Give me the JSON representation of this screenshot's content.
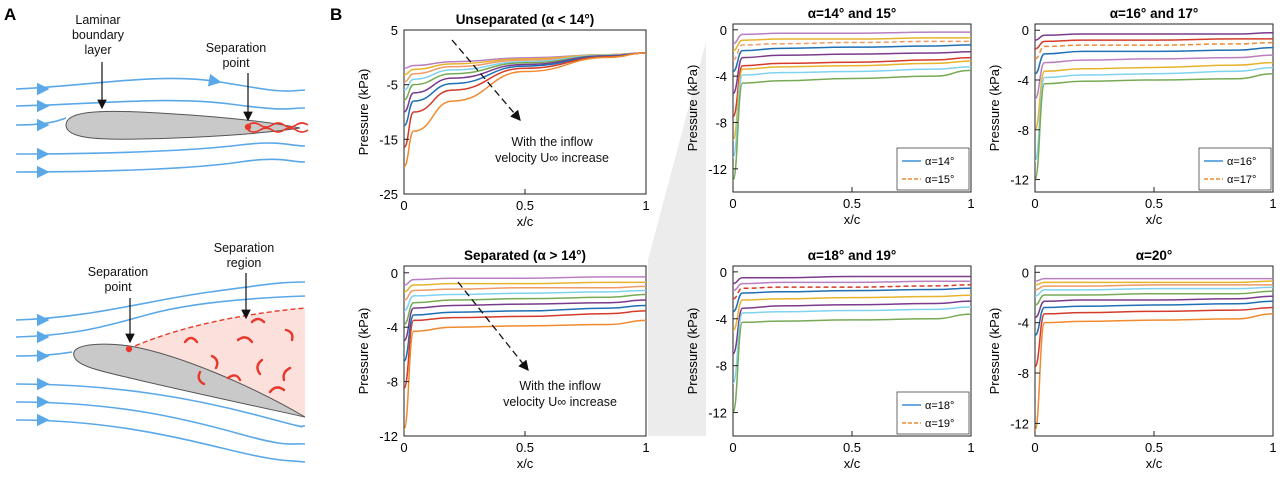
{
  "figure": {
    "label_a": "A",
    "label_b": "B",
    "a_annotations": {
      "laminar": [
        "Laminar",
        "boundary",
        "layer"
      ],
      "separation_point_top": [
        "Separation",
        "point"
      ],
      "separation_point_bottom": [
        "Separation",
        "point"
      ],
      "separation_region": [
        "Separation",
        "region"
      ]
    },
    "arrow_note": [
      "With the inflow",
      "velocity U∞ increase"
    ]
  },
  "colors": {
    "streamline": "#5aa8e8",
    "airfoil_fill": "#c9c9c9",
    "separation": "#e8382c",
    "series": [
      "#b97fc0",
      "#e6b32c",
      "#ee9b66",
      "#7fd3ef",
      "#77aa55",
      "#7b3b8c",
      "#1f6fb4",
      "#d43b2a",
      "#f08a2e"
    ]
  },
  "chart_data": [
    {
      "id": "unseparated",
      "type": "line",
      "title": "Unseparated (α < 14°)",
      "xlabel": "x/c",
      "ylabel": "Pressure (kPa)",
      "xlim": [
        0,
        1
      ],
      "ylim": [
        -25,
        5
      ],
      "xticks": [
        "0",
        "0.5",
        "1"
      ],
      "yticks": [
        "5",
        "-5",
        "-15",
        "-25"
      ],
      "series": [
        {
          "name": "curve-1",
          "values": [
            -2.0,
            -1.5,
            -0.8,
            -0.1,
            0.5,
            0.8
          ]
        },
        {
          "name": "curve-2",
          "values": [
            -3.2,
            -2.2,
            -1.2,
            -0.3,
            0.5,
            0.8
          ]
        },
        {
          "name": "curve-3",
          "values": [
            -4.5,
            -3.0,
            -1.7,
            -0.5,
            0.4,
            0.8
          ]
        },
        {
          "name": "curve-4",
          "values": [
            -6.0,
            -4.0,
            -2.3,
            -0.8,
            0.4,
            0.8
          ]
        },
        {
          "name": "curve-5",
          "values": [
            -7.8,
            -5.0,
            -3.0,
            -1.0,
            0.3,
            0.8
          ]
        },
        {
          "name": "curve-6",
          "values": [
            -10.0,
            -6.5,
            -3.8,
            -1.3,
            0.3,
            0.8
          ]
        },
        {
          "name": "curve-7",
          "values": [
            -12.5,
            -8.0,
            -4.8,
            -1.6,
            0.2,
            0.8
          ]
        },
        {
          "name": "curve-8",
          "values": [
            -16.5,
            -10.0,
            -6.0,
            -2.0,
            0.1,
            0.8
          ]
        },
        {
          "name": "curve-9",
          "values": [
            -20.0,
            -13.5,
            -8.0,
            -2.6,
            0.0,
            0.8
          ]
        }
      ],
      "series_colors": [
        "#b97fc0",
        "#e6b32c",
        "#ee9b66",
        "#7fd3ef",
        "#77aa55",
        "#7b3b8c",
        "#1f6fb4",
        "#d43b2a",
        "#f08a2e"
      ]
    },
    {
      "id": "separated",
      "type": "line",
      "title": "Separated (α > 14°)",
      "xlabel": "x/c",
      "ylabel": "Pressure (kPa)",
      "xlim": [
        0,
        1
      ],
      "ylim": [
        -12,
        0.5
      ],
      "xticks": [
        "0",
        "0.5",
        "1"
      ],
      "yticks": [
        "0",
        "-4",
        "-8",
        "-12"
      ],
      "series": [
        {
          "name": "curve-1",
          "values": [
            -0.9,
            -0.5,
            -0.4,
            -0.4,
            -0.3,
            -0.3
          ]
        },
        {
          "name": "curve-2",
          "values": [
            -1.4,
            -0.9,
            -0.8,
            -0.8,
            -0.7,
            -0.7
          ]
        },
        {
          "name": "curve-3",
          "values": [
            -2.0,
            -1.3,
            -1.2,
            -1.1,
            -1.1,
            -1.0
          ]
        },
        {
          "name": "curve-4",
          "values": [
            -2.8,
            -1.7,
            -1.6,
            -1.5,
            -1.4,
            -1.3
          ]
        },
        {
          "name": "curve-5",
          "values": [
            -3.8,
            -2.2,
            -2.0,
            -1.9,
            -1.8,
            -1.6
          ]
        },
        {
          "name": "curve-6",
          "values": [
            -5.0,
            -2.6,
            -2.4,
            -2.3,
            -2.2,
            -2.0
          ]
        },
        {
          "name": "curve-7",
          "values": [
            -6.5,
            -3.1,
            -2.9,
            -2.8,
            -2.6,
            -2.4
          ]
        },
        {
          "name": "curve-8",
          "values": [
            -8.5,
            -3.5,
            -3.3,
            -3.2,
            -3.0,
            -2.8
          ]
        },
        {
          "name": "curve-9",
          "values": [
            -11.5,
            -4.3,
            -4.0,
            -3.9,
            -3.8,
            -3.5
          ]
        }
      ],
      "series_colors": [
        "#b97fc0",
        "#e6b32c",
        "#ee9b66",
        "#7fd3ef",
        "#77aa55",
        "#7b3b8c",
        "#1f6fb4",
        "#d43b2a",
        "#f08a2e"
      ]
    },
    {
      "id": "alpha-14-15",
      "type": "line",
      "title": "α=14° and 15°",
      "xlabel": "x/c",
      "ylabel": "Pressure (kPa)",
      "xlim": [
        0,
        1
      ],
      "ylim": [
        -14,
        0.5
      ],
      "xticks": [
        "0",
        "0.5",
        "1"
      ],
      "yticks": [
        "0",
        "-4",
        "-8",
        "-12"
      ],
      "legend": [
        "α=14°",
        "α=15°"
      ],
      "series": [
        {
          "name": "curve-1",
          "values": [
            -1.2,
            -0.4,
            -0.3,
            -0.3,
            -0.2,
            -0.2
          ]
        },
        {
          "name": "curve-2",
          "values": [
            -1.8,
            -0.9,
            -0.8,
            -0.8,
            -0.7,
            -0.7
          ]
        },
        {
          "name": "curve-3",
          "values": [
            -2.6,
            -1.3,
            -1.2,
            -1.1,
            -1.0,
            -1.0
          ]
        },
        {
          "name": "curve-4",
          "values": [
            -3.6,
            -1.8,
            -1.6,
            -1.5,
            -1.4,
            -1.3
          ]
        },
        {
          "name": "curve-5",
          "values": [
            -5.5,
            -2.4,
            -2.2,
            -2.1,
            -2.0,
            -1.9
          ]
        },
        {
          "name": "curve-6",
          "values": [
            -7.5,
            -3.1,
            -2.9,
            -2.8,
            -2.6,
            -2.4
          ]
        },
        {
          "name": "curve-7",
          "values": [
            -9.5,
            -3.4,
            -3.2,
            -3.1,
            -2.9,
            -2.7
          ]
        },
        {
          "name": "curve-8",
          "values": [
            -11.0,
            -3.9,
            -3.7,
            -3.6,
            -3.4,
            -3.2
          ]
        },
        {
          "name": "curve-9",
          "values": [
            -13.0,
            -4.6,
            -4.4,
            -4.2,
            -4.0,
            -3.5
          ]
        }
      ],
      "series_colors": [
        "#b97fc0",
        "#e6b32c",
        "#ee9b66",
        "#1f6fb4",
        "#7b3b8c",
        "#d43b2a",
        "#e6b32c",
        "#7fd3ef",
        "#77aa55"
      ]
    },
    {
      "id": "alpha-16-17",
      "type": "line",
      "title": "α=16° and 17°",
      "xlabel": "x/c",
      "ylabel": "Pressure (kPa)",
      "xlim": [
        0,
        1
      ],
      "ylim": [
        -13,
        0.5
      ],
      "xticks": [
        "0",
        "0.5",
        "1"
      ],
      "yticks": [
        "0",
        "-4",
        "-8",
        "-12"
      ],
      "legend": [
        "α=16°",
        "α=17°"
      ],
      "series": [
        {
          "name": "curve-1",
          "values": [
            -0.8,
            -0.4,
            -0.3,
            -0.3,
            -0.3,
            -0.2
          ]
        },
        {
          "name": "curve-2",
          "values": [
            -1.5,
            -0.9,
            -0.8,
            -0.8,
            -0.7,
            -0.7
          ]
        },
        {
          "name": "curve-3",
          "values": [
            -2.3,
            -1.3,
            -1.2,
            -1.2,
            -1.1,
            -1.0
          ]
        },
        {
          "name": "curve-4",
          "values": [
            -3.5,
            -1.9,
            -1.7,
            -1.7,
            -1.6,
            -1.4
          ]
        },
        {
          "name": "curve-5",
          "values": [
            -5.5,
            -2.6,
            -2.4,
            -2.3,
            -2.2,
            -2.0
          ]
        },
        {
          "name": "curve-6",
          "values": [
            -8.0,
            -3.3,
            -3.1,
            -3.0,
            -2.8,
            -2.6
          ]
        },
        {
          "name": "curve-7",
          "values": [
            -10.5,
            -3.8,
            -3.6,
            -3.5,
            -3.3,
            -3.0
          ]
        },
        {
          "name": "curve-8",
          "values": [
            -12.0,
            -4.3,
            -4.1,
            -4.0,
            -3.9,
            -3.5
          ]
        }
      ],
      "series_colors": [
        "#7b3b8c",
        "#d43b2a",
        "#f08a2e",
        "#1f6fb4",
        "#b97fc0",
        "#e6b32c",
        "#7fd3ef",
        "#77aa55"
      ]
    },
    {
      "id": "alpha-18-19",
      "type": "line",
      "title": "α=18° and 19°",
      "xlabel": "x/c",
      "ylabel": "Pressure (kPa)",
      "xlim": [
        0,
        1
      ],
      "ylim": [
        -14,
        0.5
      ],
      "xticks": [
        "0",
        "0.5",
        "1"
      ],
      "yticks": [
        "0",
        "-4",
        "-8",
        "-12"
      ],
      "legend": [
        "α=18°",
        "α=19°"
      ],
      "series": [
        {
          "name": "curve-1",
          "values": [
            -1.0,
            -0.5,
            -0.5,
            -0.4,
            -0.4,
            -0.4
          ]
        },
        {
          "name": "curve-2",
          "values": [
            -1.6,
            -1.0,
            -0.9,
            -0.9,
            -0.8,
            -0.8
          ]
        },
        {
          "name": "curve-3",
          "values": [
            -2.3,
            -1.4,
            -1.3,
            -1.3,
            -1.2,
            -1.1
          ]
        },
        {
          "name": "curve-4",
          "values": [
            -3.4,
            -1.8,
            -1.7,
            -1.6,
            -1.5,
            -1.4
          ]
        },
        {
          "name": "curve-5",
          "values": [
            -5.0,
            -2.4,
            -2.3,
            -2.2,
            -2.1,
            -2.0
          ]
        },
        {
          "name": "curve-6",
          "values": [
            -7.0,
            -3.1,
            -2.9,
            -2.8,
            -2.7,
            -2.5
          ]
        },
        {
          "name": "curve-7",
          "values": [
            -9.5,
            -3.5,
            -3.4,
            -3.3,
            -3.2,
            -3.0
          ]
        },
        {
          "name": "curve-8",
          "values": [
            -12.0,
            -4.3,
            -4.2,
            -4.1,
            -4.0,
            -3.6
          ]
        }
      ],
      "series_colors": [
        "#7b3b8c",
        "#b97fc0",
        "#d43b2a",
        "#1f6fb4",
        "#e6b32c",
        "#7b3b8c",
        "#7fd3ef",
        "#77aa55"
      ]
    },
    {
      "id": "alpha-20",
      "type": "line",
      "title": "α=20°",
      "xlabel": "x/c",
      "ylabel": "Pressure (kPa)",
      "xlim": [
        0,
        1
      ],
      "ylim": [
        -13,
        0.5
      ],
      "xticks": [
        "0",
        "0.5",
        "1"
      ],
      "yticks": [
        "0",
        "-4",
        "-8",
        "-12"
      ],
      "series": [
        {
          "name": "curve-1",
          "values": [
            -0.7,
            -0.5,
            -0.5,
            -0.5,
            -0.5,
            -0.5
          ]
        },
        {
          "name": "curve-2",
          "values": [
            -1.0,
            -0.8,
            -0.8,
            -0.8,
            -0.8,
            -0.7
          ]
        },
        {
          "name": "curve-3",
          "values": [
            -1.4,
            -1.1,
            -1.1,
            -1.0,
            -1.0,
            -1.0
          ]
        },
        {
          "name": "curve-4",
          "values": [
            -1.9,
            -1.4,
            -1.4,
            -1.3,
            -1.3,
            -1.2
          ]
        },
        {
          "name": "curve-5",
          "values": [
            -2.6,
            -1.8,
            -1.8,
            -1.7,
            -1.7,
            -1.5
          ]
        },
        {
          "name": "curve-6",
          "values": [
            -3.6,
            -2.3,
            -2.2,
            -2.2,
            -2.1,
            -1.9
          ]
        },
        {
          "name": "curve-7",
          "values": [
            -5.0,
            -2.8,
            -2.7,
            -2.6,
            -2.5,
            -2.3
          ]
        },
        {
          "name": "curve-8",
          "values": [
            -7.5,
            -3.3,
            -3.2,
            -3.1,
            -3.0,
            -2.8
          ]
        },
        {
          "name": "curve-9",
          "values": [
            -12.5,
            -4.0,
            -3.9,
            -3.8,
            -3.7,
            -3.3
          ]
        }
      ],
      "series_colors": [
        "#b97fc0",
        "#e6b32c",
        "#ee9b66",
        "#7fd3ef",
        "#77aa55",
        "#7b3b8c",
        "#1f6fb4",
        "#d43b2a",
        "#f08a2e"
      ]
    }
  ]
}
